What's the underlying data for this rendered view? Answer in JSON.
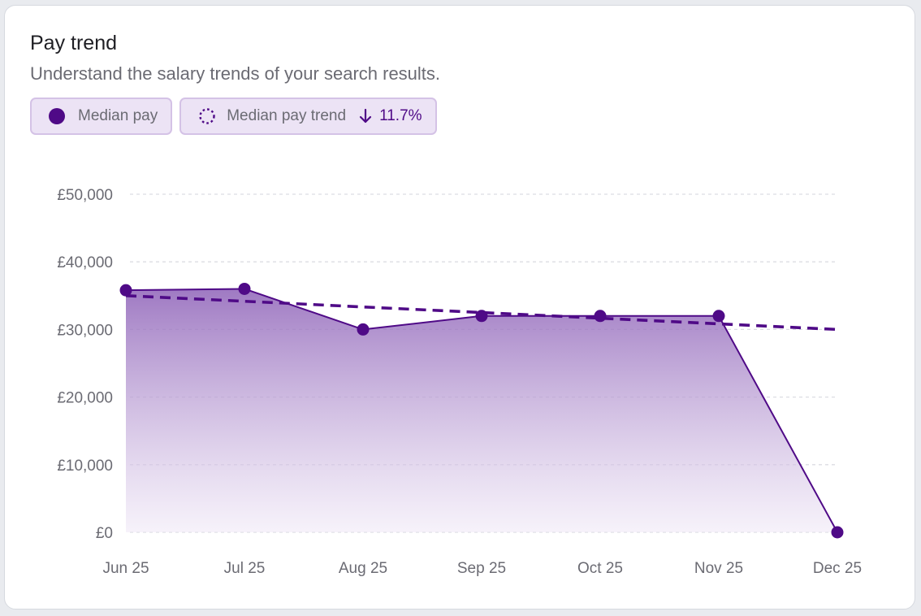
{
  "card": {
    "title": "Pay trend",
    "subtitle": "Understand the salary trends of your search results."
  },
  "legend": {
    "series_label": "Median pay",
    "trend_label": "Median pay trend",
    "trend_change": "11.7%",
    "trend_direction_icon": "arrow-down-icon"
  },
  "colors": {
    "series": "#4f0a87",
    "chip_bg": "#ece3f5",
    "chip_border": "#d4c2e6"
  },
  "chart_data": {
    "type": "area",
    "categories": [
      "Jun 25",
      "Jul 25",
      "Aug 25",
      "Sep 25",
      "Oct 25",
      "Nov 25",
      "Dec 25"
    ],
    "series": [
      {
        "name": "Median pay",
        "values": [
          35800,
          36000,
          30000,
          32000,
          32000,
          32000,
          0
        ]
      },
      {
        "name": "Median pay trend",
        "style": "dashed",
        "values": [
          35000,
          34170,
          33330,
          32500,
          31670,
          30830,
          30000
        ]
      }
    ],
    "yticks": [
      "£0",
      "£10,000",
      "£20,000",
      "£30,000",
      "£40,000",
      "£50,000"
    ],
    "ylim": [
      0,
      50000
    ],
    "grid": true,
    "legend_placement": "top-left"
  }
}
